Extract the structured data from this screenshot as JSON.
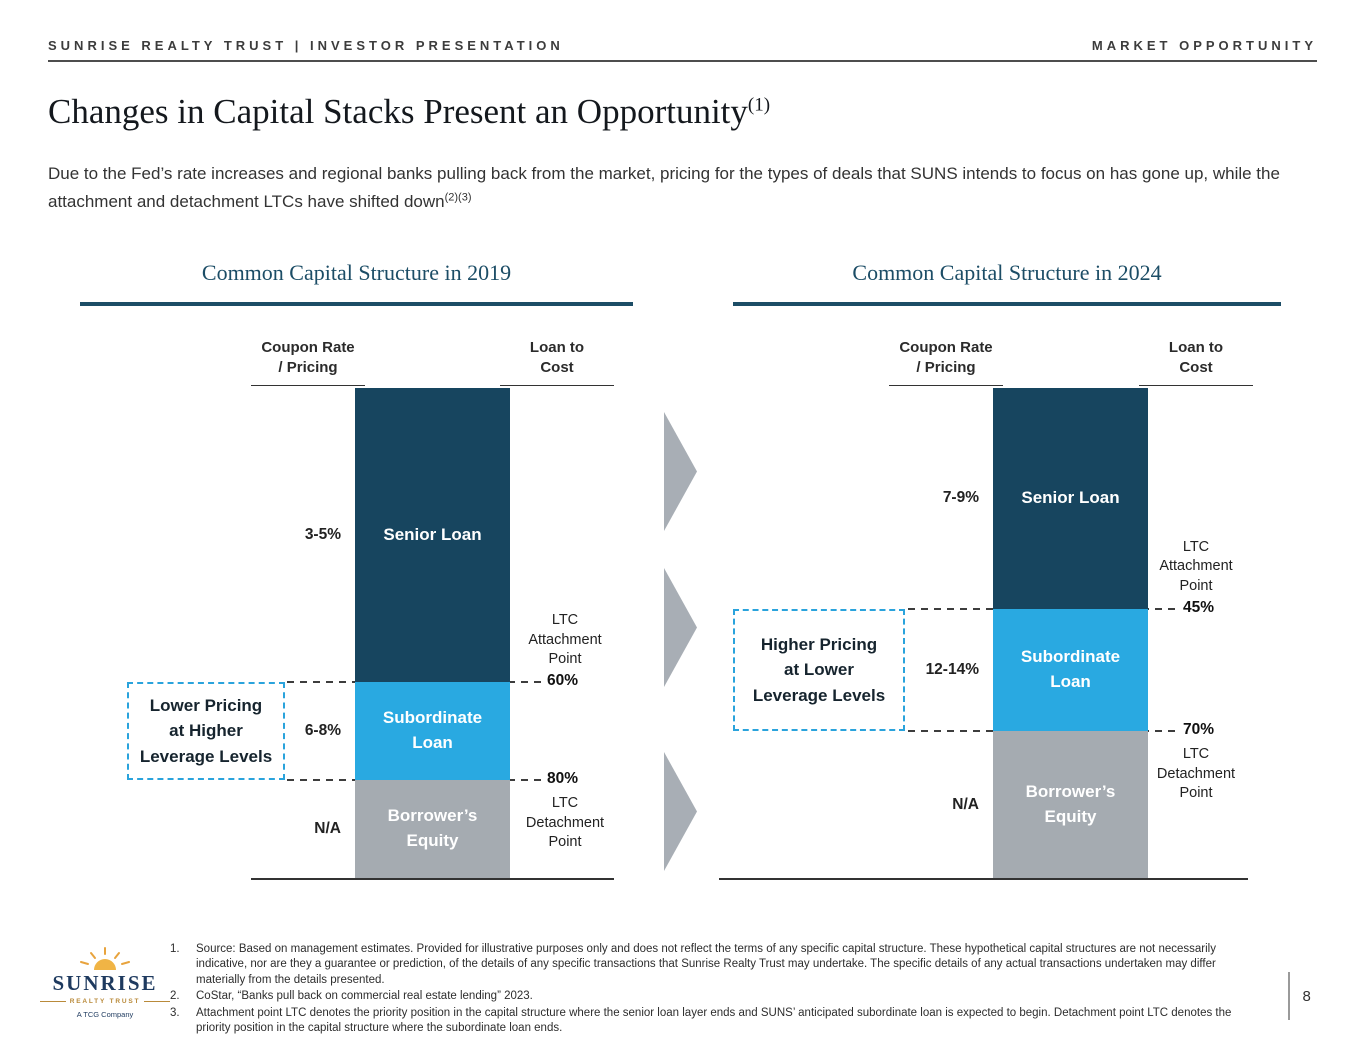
{
  "header": {
    "left": "SUNRISE REALTY TRUST | INVESTOR PRESENTATION",
    "right": "MARKET OPPORTUNITY"
  },
  "title": {
    "text": "Changes in Capital Stacks Present an Opportunity",
    "superscript": "(1)"
  },
  "intro": {
    "text": "Due to the Fed’s rate increases and regional banks pulling back from the market, pricing for the types of deals that SUNS intends to focus on has gone up, while the attachment and detachment LTCs have shifted down",
    "superscript": "(2)(3)"
  },
  "colors": {
    "senior_navy": "#17455f",
    "subordinate_blue": "#29a9e1",
    "equity_gray": "#a5abb1",
    "arrow_gray": "#a8aeb5",
    "callout_border_blue": "#2aa3dc",
    "panel_rule_navy": "#1c4d66"
  },
  "charts": [
    {
      "title": "Common Capital Structure in 2019",
      "coupon_header": "Coupon Rate\n/ Pricing",
      "ltc_header": "Loan to\nCost",
      "segments": [
        {
          "name": "Senior Loan",
          "label": "Senior Loan",
          "coupon": "3-5%",
          "from_pct": 0,
          "to_pct": 60,
          "color": "#17455f"
        },
        {
          "name": "Subordinate Loan",
          "label": "Subordinate\nLoan",
          "coupon": "6-8%",
          "from_pct": 60,
          "to_pct": 80,
          "color": "#29a9e1"
        },
        {
          "name": "Borrower’s Equity",
          "label": "Borrower’s\nEquity",
          "coupon": "N/A",
          "from_pct": 80,
          "to_pct": 100,
          "color": "#a5abb1"
        }
      ],
      "attachment": {
        "label": "LTC\nAttachment\nPoint",
        "value": "60%",
        "pct": 60
      },
      "detachment": {
        "label": "LTC\nDetachment\nPoint",
        "value": "80%",
        "pct": 80
      },
      "callout": "Lower Pricing\nat Higher\nLeverage Levels"
    },
    {
      "title": "Common Capital Structure in 2024",
      "coupon_header": "Coupon Rate\n/ Pricing",
      "ltc_header": "Loan to\nCost",
      "segments": [
        {
          "name": "Senior Loan",
          "label": "Senior Loan",
          "coupon": "7-9%",
          "from_pct": 0,
          "to_pct": 45,
          "color": "#17455f"
        },
        {
          "name": "Subordinate Loan",
          "label": "Subordinate\nLoan",
          "coupon": "12-14%",
          "from_pct": 45,
          "to_pct": 70,
          "color": "#29a9e1"
        },
        {
          "name": "Borrower’s Equity",
          "label": "Borrower’s\nEquity",
          "coupon": "N/A",
          "from_pct": 70,
          "to_pct": 100,
          "color": "#a5abb1"
        }
      ],
      "attachment": {
        "label": "LTC\nAttachment\nPoint",
        "value": "45%",
        "pct": 45
      },
      "detachment": {
        "label": "LTC\nDetachment\nPoint",
        "value": "70%",
        "pct": 70
      },
      "callout": "Higher Pricing\nat Lower\nLeverage Levels"
    }
  ],
  "footnotes": [
    {
      "num": "1.",
      "text": "Source: Based on management estimates. Provided for illustrative purposes only and does not reflect the terms of any specific capital structure. These hypothetical capital structures are not necessarily indicative, nor are they a guarantee or prediction, of the details of any specific transactions that Sunrise Realty Trust may undertake. The specific details of any actual transactions undertaken may differ materially from the details presented."
    },
    {
      "num": "2.",
      "text": "CoStar, “Banks pull back on commercial real estate lending” 2023."
    },
    {
      "num": "3.",
      "text": "Attachment point LTC denotes the priority position in the capital structure where the senior loan layer ends and SUNS’ anticipated subordinate loan is expected to begin. Detachment point LTC denotes the priority position in the capital structure where the subordinate loan ends."
    }
  ],
  "logo": {
    "name": "SUNRISE",
    "tagline": "REALTY TRUST",
    "company": "A TCG Company"
  },
  "page_number": "8",
  "chart_data": [
    {
      "type": "bar",
      "title": "Common Capital Structure in 2019",
      "ylabel": "Loan to Cost %",
      "ylim": [
        0,
        100
      ],
      "categories": [
        "Senior Loan",
        "Subordinate Loan",
        "Borrower’s Equity"
      ],
      "ltc_ranges_pct": [
        [
          0,
          60
        ],
        [
          60,
          80
        ],
        [
          80,
          100
        ]
      ],
      "coupon_rates": [
        "3-5%",
        "6-8%",
        "N/A"
      ],
      "attachment_point_pct": 60,
      "detachment_point_pct": 80,
      "annotation": "Lower Pricing at Higher Leverage Levels"
    },
    {
      "type": "bar",
      "title": "Common Capital Structure in 2024",
      "ylabel": "Loan to Cost %",
      "ylim": [
        0,
        100
      ],
      "categories": [
        "Senior Loan",
        "Subordinate Loan",
        "Borrower’s Equity"
      ],
      "ltc_ranges_pct": [
        [
          0,
          45
        ],
        [
          45,
          70
        ],
        [
          70,
          100
        ]
      ],
      "coupon_rates": [
        "7-9%",
        "12-14%",
        "N/A"
      ],
      "attachment_point_pct": 45,
      "detachment_point_pct": 70,
      "annotation": "Higher Pricing at Lower Leverage Levels"
    }
  ]
}
